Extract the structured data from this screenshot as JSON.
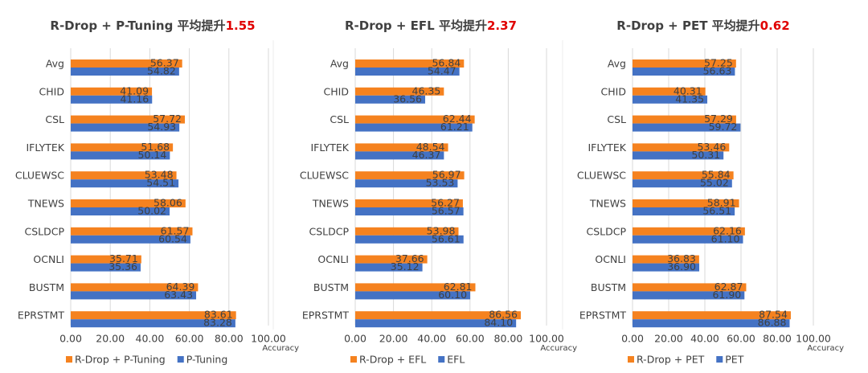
{
  "chart_data": [
    {
      "type": "bar",
      "orientation": "horizontal",
      "title": "R-Drop + P-Tuning 平均提升",
      "title_highlight": "1.55",
      "xlabel": "Accuracy",
      "categories": [
        "Avg",
        "CHID",
        "CSL",
        "IFLYTEK",
        "CLUEWSC",
        "TNEWS",
        "CSLDCP",
        "OCNLI",
        "BUSTM",
        "EPRSTMT"
      ],
      "series": [
        {
          "name": "R-Drop + P-Tuning",
          "color": "#f5821f",
          "values": [
            56.37,
            41.09,
            57.72,
            51.68,
            53.48,
            58.06,
            61.57,
            35.71,
            64.39,
            83.61
          ],
          "value_labels": [
            "56.37",
            "41.09",
            "57.72",
            "51.68",
            "53.48",
            "58.06",
            "61.57",
            "35.71",
            "64.39",
            "83.61"
          ]
        },
        {
          "name": "P-Tuning",
          "color": "#4472c4",
          "values": [
            54.82,
            41.16,
            54.93,
            50.14,
            54.51,
            50.02,
            60.54,
            35.36,
            63.43,
            83.28
          ],
          "value_labels": [
            "54.82",
            "41.16",
            "54.93",
            "50.14",
            "54.51",
            "50.02",
            "60.54",
            "35.36",
            "63.43",
            "83.28"
          ]
        }
      ],
      "xlim": [
        0,
        100
      ],
      "xticks": [
        {
          "value": 0,
          "label": "0.00"
        },
        {
          "value": 20,
          "label": "20.00"
        },
        {
          "value": 40,
          "label": "40.00"
        },
        {
          "value": 60,
          "label": "60.00"
        },
        {
          "value": 80,
          "label": "80.00"
        },
        {
          "value": 100,
          "label": "100.00"
        }
      ],
      "grid": true,
      "legend": "bottom"
    },
    {
      "type": "bar",
      "orientation": "horizontal",
      "title": "R-Drop + EFL 平均提升",
      "title_highlight": "2.37",
      "xlabel": "Accuracy",
      "categories": [
        "Avg",
        "CHID",
        "CSL",
        "IFLYTEK",
        "CLUEWSC",
        "TNEWS",
        "CSLDCP",
        "OCNLI",
        "BUSTM",
        "EPRSTMT"
      ],
      "series": [
        {
          "name": "R-Drop + EFL",
          "color": "#f5821f",
          "values": [
            56.84,
            46.35,
            62.44,
            48.54,
            56.97,
            56.27,
            53.98,
            37.66,
            62.81,
            86.56
          ],
          "value_labels": [
            "56.84",
            "46.35",
            "62.44",
            "48.54",
            "56.97",
            "56.27",
            "53.98",
            "37.66",
            "62.81",
            "86.56"
          ]
        },
        {
          "name": "EFL",
          "color": "#4472c4",
          "values": [
            54.47,
            36.56,
            61.21,
            46.37,
            53.53,
            56.57,
            56.61,
            35.12,
            60.1,
            84.1
          ],
          "value_labels": [
            "54.47",
            "36.56",
            "61.21",
            "46.37",
            "53.53",
            "56.57",
            "56.61",
            "35.12",
            "60.10",
            "84.10"
          ]
        }
      ],
      "xlim": [
        0,
        100
      ],
      "xticks": [
        {
          "value": 0,
          "label": "0.00"
        },
        {
          "value": 20,
          "label": "20.00"
        },
        {
          "value": 40,
          "label": "40.00"
        },
        {
          "value": 60,
          "label": "60.00"
        },
        {
          "value": 80,
          "label": "80.00"
        },
        {
          "value": 100,
          "label": "100.00"
        }
      ],
      "grid": true,
      "legend": "bottom"
    },
    {
      "type": "bar",
      "orientation": "horizontal",
      "title": "R-Drop + PET 平均提升",
      "title_highlight": "0.62",
      "xlabel": "Accuracy",
      "categories": [
        "Avg",
        "CHID",
        "CSL",
        "IFLYTEK",
        "CLUEWSC",
        "TNEWS",
        "CSLDCP",
        "OCNLI",
        "BUSTM",
        "EPRSTMT"
      ],
      "series": [
        {
          "name": "R-Drop + PET",
          "color": "#f5821f",
          "values": [
            57.25,
            40.31,
            57.29,
            53.46,
            55.84,
            58.91,
            62.16,
            36.83,
            62.87,
            87.54
          ],
          "value_labels": [
            "57.25",
            "40.31",
            "57.29",
            "53.46",
            "55.84",
            "58.91",
            "62.16",
            "36.83",
            "62.87",
            "87.54"
          ]
        },
        {
          "name": "PET",
          "color": "#4472c4",
          "values": [
            56.63,
            41.35,
            59.72,
            50.31,
            55.02,
            56.51,
            61.1,
            36.9,
            61.9,
            86.88
          ],
          "value_labels": [
            "56.63",
            "41.35",
            "59.72",
            "50.31",
            "55.02",
            "56.51",
            "61.10",
            "36.90",
            "61.90",
            "86.88"
          ]
        }
      ],
      "xlim": [
        0,
        100
      ],
      "xticks": [
        {
          "value": 0,
          "label": "0.00"
        },
        {
          "value": 20,
          "label": "20.00"
        },
        {
          "value": 40,
          "label": "40.00"
        },
        {
          "value": 60,
          "label": "60.00"
        },
        {
          "value": 80,
          "label": "80.00"
        },
        {
          "value": 100,
          "label": "100.00"
        }
      ],
      "grid": true,
      "legend": "bottom"
    }
  ]
}
